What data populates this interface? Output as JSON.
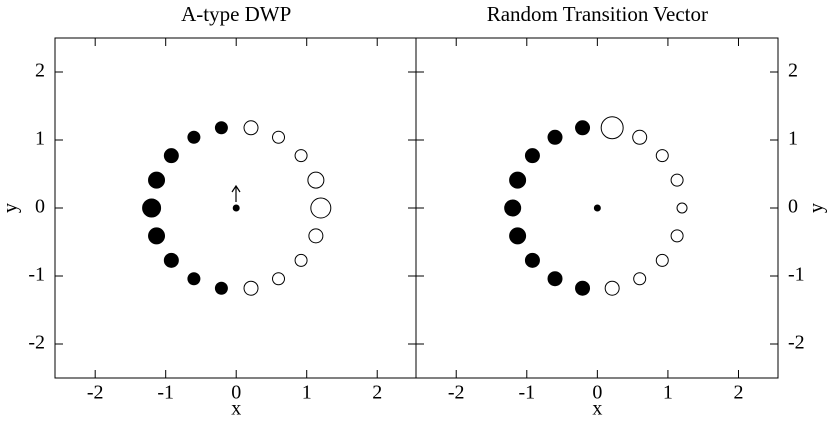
{
  "chart_data": [
    {
      "type": "scatter",
      "title": "A-type DWP",
      "xlabel": "x",
      "ylabel": "y",
      "yaxis_side": "left",
      "xlim": [
        -2.57,
        2.55
      ],
      "ylim": [
        -2.5,
        2.5
      ],
      "xticks": [
        -2,
        -1,
        0,
        1,
        2
      ],
      "yticks": [
        -2,
        -1,
        0,
        1,
        2
      ],
      "series": [
        {
          "color": "#000000",
          "marker": "filled",
          "x": [
            -0.21,
            -0.6,
            -0.92,
            -1.13,
            -1.2,
            -1.13,
            -0.92,
            -0.6,
            -0.21
          ],
          "y": [
            1.18,
            1.04,
            0.77,
            0.41,
            0,
            -0.41,
            -0.77,
            -1.04,
            -1.18
          ],
          "sizes": [
            6,
            6,
            7,
            8,
            9,
            8,
            7,
            6,
            6
          ]
        },
        {
          "color": "#000000",
          "marker": "open",
          "x": [
            0.21,
            0.6,
            0.92,
            1.13,
            1.2,
            1.13,
            0.92,
            0.6,
            0.21
          ],
          "y": [
            -1.18,
            -1.04,
            -0.77,
            -0.41,
            0,
            0.41,
            0.77,
            1.04,
            1.18
          ],
          "sizes": [
            7,
            6,
            6,
            7,
            10,
            8,
            6,
            6,
            7
          ]
        },
        {
          "color": "#000000",
          "marker": "filled",
          "x": [
            0
          ],
          "y": [
            0
          ],
          "sizes": [
            3
          ]
        }
      ]
    },
    {
      "type": "scatter",
      "title": "Random Transition Vector",
      "xlabel": "x",
      "ylabel": "y",
      "yaxis_side": "right",
      "xlim": [
        -2.57,
        2.56
      ],
      "ylim": [
        -2.5,
        2.5
      ],
      "xticks": [
        -2,
        -1,
        0,
        1,
        2
      ],
      "yticks": [
        -2,
        -1,
        0,
        1,
        2
      ],
      "series": [
        {
          "color": "#000000",
          "marker": "filled",
          "x": [
            -0.21,
            -0.6,
            -0.92,
            -1.13,
            -1.2,
            -1.13,
            -0.92,
            -0.6,
            -0.21
          ],
          "y": [
            1.18,
            1.04,
            0.77,
            0.41,
            0,
            -0.41,
            -0.77,
            -1.04,
            -1.18
          ],
          "sizes": [
            7,
            7,
            7,
            8,
            8,
            8,
            7,
            7,
            7
          ]
        },
        {
          "color": "#000000",
          "marker": "open",
          "x": [
            0.21,
            0.6,
            0.92,
            1.13,
            1.2,
            1.13,
            0.92,
            0.6,
            0.21
          ],
          "y": [
            -1.18,
            -1.04,
            -0.77,
            -0.41,
            0,
            0.41,
            0.77,
            1.04,
            1.18
          ],
          "sizes": [
            7,
            6,
            6,
            6,
            5,
            6,
            6,
            7,
            11
          ]
        },
        {
          "color": "#000000",
          "marker": "filled",
          "x": [
            0
          ],
          "y": [
            0
          ],
          "sizes": [
            3
          ]
        }
      ]
    }
  ]
}
